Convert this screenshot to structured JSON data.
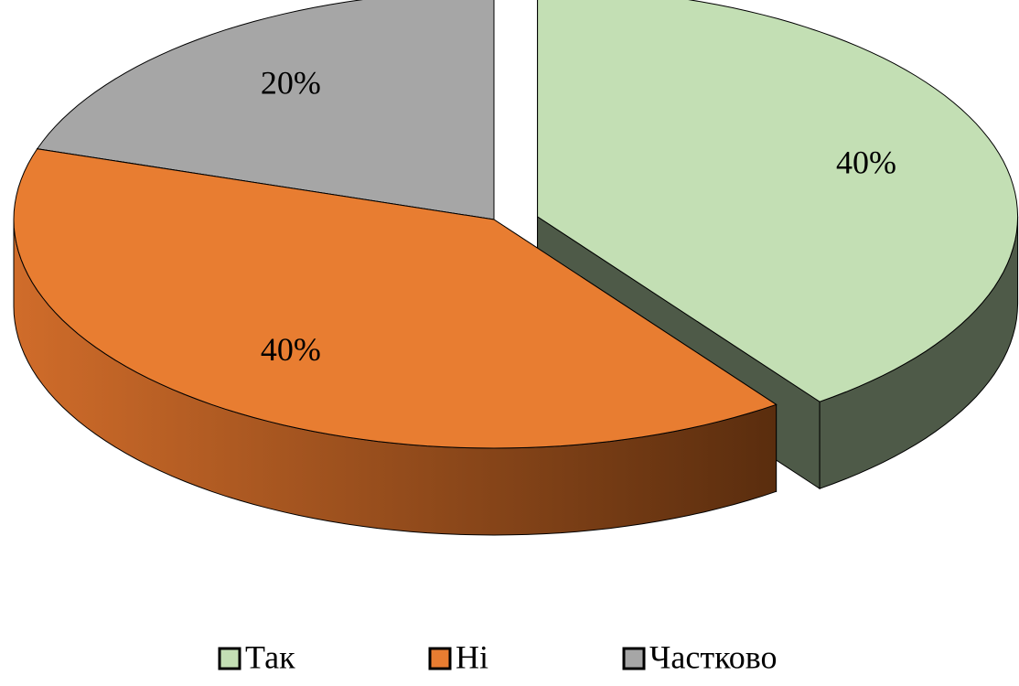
{
  "chart_data": {
    "type": "pie",
    "categories": [
      "Так",
      "Ні",
      "Частково"
    ],
    "values": [
      40,
      40,
      20
    ],
    "value_labels": [
      "40%",
      "40%",
      "20%"
    ],
    "colors": [
      "#c3dfb4",
      "#e87d31",
      "#a6a6a6"
    ],
    "legend": "bottom"
  }
}
